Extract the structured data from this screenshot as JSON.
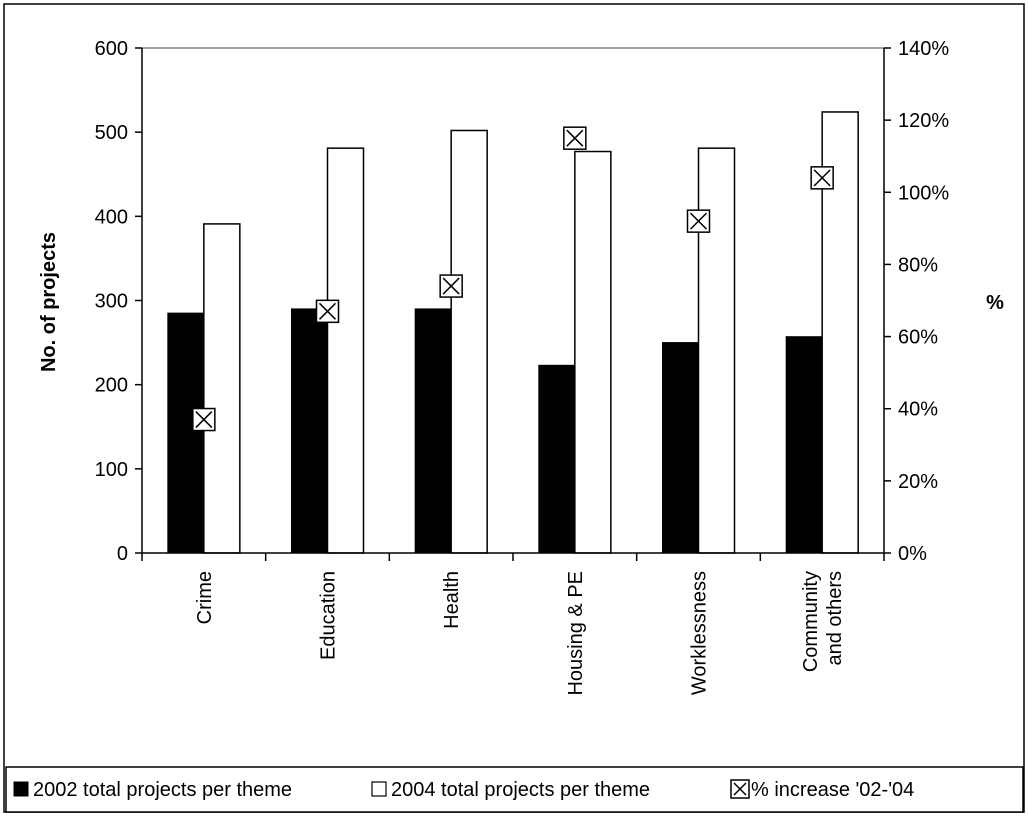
{
  "chart_data": {
    "type": "bar",
    "categories": [
      "Crime",
      "Education",
      "Health",
      "Housing & PE",
      "Worklessness",
      "Community and others"
    ],
    "category_lines": [
      [
        "Crime"
      ],
      [
        "Education"
      ],
      [
        "Health"
      ],
      [
        "Housing & PE"
      ],
      [
        "Worklessness"
      ],
      [
        "Community",
        "and others"
      ]
    ],
    "series": [
      {
        "name": "2002 total projects per theme",
        "type": "bar",
        "axis": "left",
        "color": "#000000",
        "values": [
          285,
          290,
          290,
          223,
          250,
          257
        ]
      },
      {
        "name": "2004 total projects per theme",
        "type": "bar",
        "axis": "left",
        "color": "#ffffff",
        "values": [
          391,
          481,
          502,
          477,
          481,
          524
        ]
      },
      {
        "name": "% increase '02-'04",
        "type": "scatter",
        "axis": "right",
        "marker": "boxed-x",
        "values": [
          37,
          67,
          74,
          115,
          92,
          104
        ]
      }
    ],
    "ylabel": "No. of projects",
    "y2label": "%",
    "ylim": [
      0,
      600
    ],
    "y2lim": [
      0,
      140
    ],
    "yticks": [
      "0",
      "100",
      "200",
      "300",
      "400",
      "500",
      "600"
    ],
    "y2ticks": [
      "0%",
      "20%",
      "40%",
      "60%",
      "80%",
      "100%",
      "120%",
      "140%"
    ],
    "grid": false,
    "legend_position": "bottom"
  }
}
